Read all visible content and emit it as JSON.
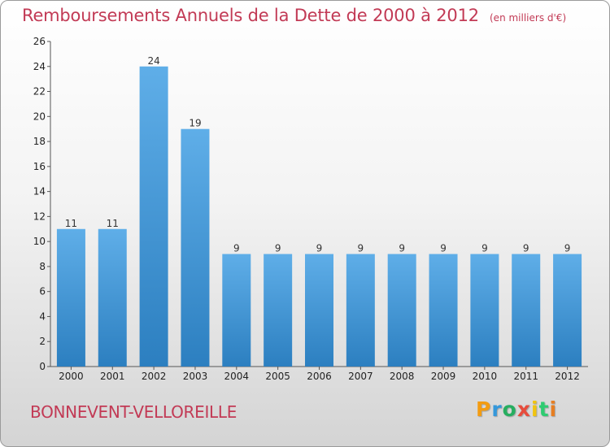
{
  "title": "Remboursements Annuels de la Dette de 2000 à 2012",
  "unit": "(en milliers d'€)",
  "commune": "BONNEVENT-VELLOREILLE",
  "logo": {
    "letters": [
      "P",
      "r",
      "o",
      "x",
      "i",
      "t",
      "i"
    ],
    "colors": [
      "#f39c12",
      "#3498db",
      "#27ae60",
      "#e74c3c",
      "#f1c40f",
      "#2ecc71",
      "#e67e22"
    ]
  },
  "colors": {
    "bar_light": "#5faee8",
    "bar_dark": "#2c7fc0",
    "title": "#c23a55"
  },
  "chart_data": {
    "type": "bar",
    "categories": [
      "2000",
      "2001",
      "2002",
      "2003",
      "2004",
      "2005",
      "2006",
      "2007",
      "2008",
      "2009",
      "2010",
      "2011",
      "2012"
    ],
    "values": [
      11,
      11,
      24,
      19,
      9,
      9,
      9,
      9,
      9,
      9,
      9,
      9,
      9
    ],
    "ylim": [
      0,
      26
    ],
    "yticks": [
      0,
      2,
      4,
      6,
      8,
      10,
      12,
      14,
      16,
      18,
      20,
      22,
      24,
      26
    ],
    "grid": false
  }
}
